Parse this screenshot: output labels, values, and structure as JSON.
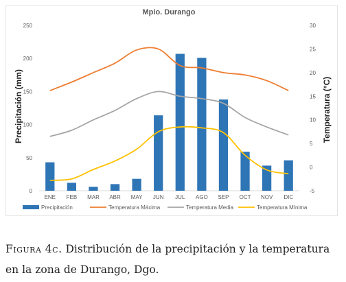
{
  "chart_data": {
    "type": "bar+line",
    "title": "Mpio. Durango",
    "categories": [
      "ENE",
      "FEB",
      "MAR",
      "ABR",
      "MAY",
      "JUN",
      "JUL",
      "AGO",
      "SEP",
      "OCT",
      "NOV",
      "DIC"
    ],
    "bar_series": {
      "name": "Precipitación",
      "color": "#2e75b6",
      "values": [
        43,
        12,
        6,
        10,
        18,
        114,
        207,
        201,
        138,
        59,
        38,
        46
      ]
    },
    "line_series": [
      {
        "name": "Temperatura Máxima",
        "color": "#ed7d31",
        "values": [
          16.2,
          18.0,
          20.0,
          22.0,
          24.8,
          25.0,
          21.5,
          21.0,
          20.0,
          19.5,
          18.3,
          16.2
        ]
      },
      {
        "name": "Temperatura Media",
        "color": "#a5a5a5",
        "values": [
          6.5,
          7.8,
          10.0,
          12.0,
          14.5,
          16.0,
          15.0,
          14.5,
          13.5,
          10.5,
          8.5,
          6.8
        ]
      },
      {
        "name": "Temperatura Mínima",
        "color": "#ffc000",
        "values": [
          -2.8,
          -2.5,
          -0.5,
          1.3,
          3.8,
          7.5,
          8.5,
          8.3,
          7.3,
          2.5,
          -0.6,
          -1.4
        ]
      }
    ],
    "ylabel": "Precipitación (mm)",
    "y2label": "Temperatura (°C)",
    "ylim": [
      0,
      250
    ],
    "yticks": [
      0,
      50,
      100,
      150,
      200,
      250
    ],
    "y2lim": [
      -5,
      30
    ],
    "y2ticks": [
      -5,
      0,
      5,
      10,
      15,
      20,
      25,
      30
    ],
    "grid": false,
    "legend": "bottom"
  },
  "caption": {
    "label": "Figura 4c.",
    "text": "Distribución de la precipitación y la temperatura en la zona de Durango, Dgo."
  }
}
